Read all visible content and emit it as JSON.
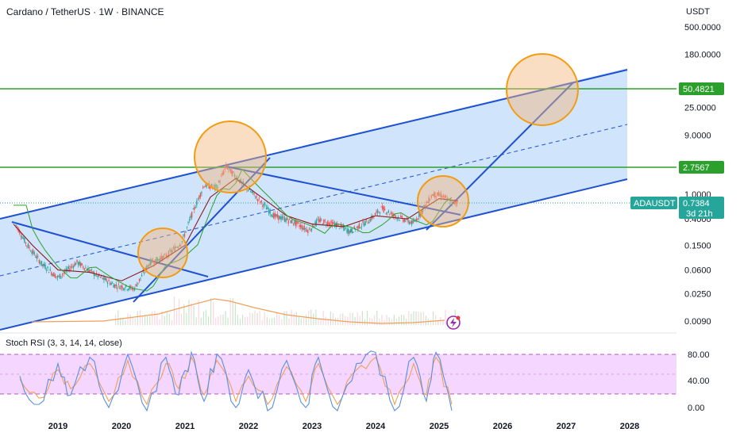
{
  "header": {
    "title": "Cardano / TetherUS · 1W · BINANCE",
    "currency": "USDT"
  },
  "price_axis": {
    "ticks": [
      "500.0000",
      "180.0000",
      "50.4821",
      "25.0000",
      "9.0000",
      "2.7567",
      "1.0000",
      "0.7384",
      "0.4000",
      "0.1500",
      "0.0600",
      "0.0250",
      "0.0090"
    ]
  },
  "labels": {
    "level_high": "50.4821",
    "level_mid": "2.7567",
    "symbol": "ADAUSDT",
    "last_price": "0.7384",
    "countdown": "3d 21h"
  },
  "rsi": {
    "title": "Stoch RSI (3, 3, 14, 14, close)",
    "ticks": [
      "80.00",
      "40.00",
      "0.00"
    ],
    "band": [
      20,
      80
    ],
    "mid": 50
  },
  "time_axis": {
    "years": [
      "2019",
      "2020",
      "2021",
      "2022",
      "2023",
      "2024",
      "2025",
      "2026",
      "2027",
      "2028"
    ]
  },
  "colors": {
    "up": "#26a69a",
    "down": "#ef5350",
    "channel": "#1e50d2",
    "channel_fill": "#bcd8fa",
    "level": "#2ca02c",
    "circle": "#f39c12",
    "ema": "#8b1a1a",
    "rsi_k": "#5b8fdc",
    "rsi_d": "#f0a05a",
    "rsi_band": "#f0c8ff"
  },
  "chart_data": {
    "type": "line",
    "title": "Cardano / TetherUS · 1W · BINANCE",
    "yscale": "log",
    "ylim": [
      0.0065,
      700
    ],
    "xlim": [
      2018.2,
      2028.5
    ],
    "series": [
      {
        "values": [
          [
            2018.3,
            0.38
          ],
          [
            2018.5,
            0.16
          ],
          [
            2018.75,
            0.075
          ],
          [
            2019.0,
            0.045
          ],
          [
            2019.3,
            0.08
          ],
          [
            2019.6,
            0.05
          ],
          [
            2019.9,
            0.034
          ],
          [
            2020.2,
            0.03
          ],
          [
            2020.45,
            0.08
          ],
          [
            2020.7,
            0.1
          ],
          [
            2020.95,
            0.17
          ],
          [
            2021.1,
            0.45
          ],
          [
            2021.3,
            1.4
          ],
          [
            2021.5,
            1.3
          ],
          [
            2021.65,
            2.8
          ],
          [
            2021.9,
            1.5
          ],
          [
            2022.1,
            0.95
          ],
          [
            2022.4,
            0.45
          ],
          [
            2022.7,
            0.36
          ],
          [
            2022.95,
            0.26
          ],
          [
            2023.1,
            0.38
          ],
          [
            2023.4,
            0.32
          ],
          [
            2023.6,
            0.25
          ],
          [
            2023.9,
            0.38
          ],
          [
            2024.1,
            0.6
          ],
          [
            2024.3,
            0.45
          ],
          [
            2024.6,
            0.34
          ],
          [
            2024.9,
            1.0
          ],
          [
            2025.05,
            0.95
          ],
          [
            2025.2,
            0.72
          ],
          [
            2025.3,
            0.7384
          ]
        ]
      },
      {
        "values": [
          [
            2018.3,
            0.33
          ],
          [
            2018.6,
            0.15
          ],
          [
            2019.0,
            0.06
          ],
          [
            2019.5,
            0.055
          ],
          [
            2020.0,
            0.04
          ],
          [
            2020.5,
            0.07
          ],
          [
            2021.0,
            0.15
          ],
          [
            2021.4,
            0.9
          ],
          [
            2021.8,
            1.8
          ],
          [
            2022.2,
            0.9
          ],
          [
            2022.6,
            0.45
          ],
          [
            2023.0,
            0.33
          ],
          [
            2023.5,
            0.3
          ],
          [
            2024.0,
            0.45
          ],
          [
            2024.5,
            0.4
          ],
          [
            2025.0,
            0.85
          ],
          [
            2025.3,
            0.78
          ]
        ]
      }
    ],
    "levels": [
      50.4821,
      2.7567
    ],
    "stoch_rsi": {
      "ylim": [
        0,
        100
      ],
      "band": [
        20,
        80
      ],
      "k": [
        [
          2018.4,
          60
        ],
        [
          2018.7,
          15
        ],
        [
          2019.0,
          80
        ],
        [
          2019.2,
          30
        ],
        [
          2019.5,
          90
        ],
        [
          2019.8,
          10
        ],
        [
          2020.1,
          95
        ],
        [
          2020.4,
          5
        ],
        [
          2020.7,
          90
        ],
        [
          2020.9,
          30
        ],
        [
          2021.1,
          98
        ],
        [
          2021.3,
          20
        ],
        [
          2021.5,
          95
        ],
        [
          2021.8,
          10
        ],
        [
          2022.0,
          70
        ],
        [
          2022.3,
          5
        ],
        [
          2022.6,
          85
        ],
        [
          2022.9,
          10
        ],
        [
          2023.1,
          90
        ],
        [
          2023.4,
          5
        ],
        [
          2023.7,
          80
        ],
        [
          2024.0,
          98
        ],
        [
          2024.3,
          5
        ],
        [
          2024.6,
          90
        ],
        [
          2024.8,
          20
        ],
        [
          2024.95,
          98
        ],
        [
          2025.2,
          5
        ]
      ],
      "d": [
        [
          2018.4,
          55
        ],
        [
          2018.7,
          25
        ],
        [
          2019.0,
          70
        ],
        [
          2019.2,
          40
        ],
        [
          2019.5,
          80
        ],
        [
          2019.8,
          20
        ],
        [
          2020.1,
          85
        ],
        [
          2020.4,
          15
        ],
        [
          2020.7,
          80
        ],
        [
          2020.9,
          40
        ],
        [
          2021.1,
          90
        ],
        [
          2021.3,
          30
        ],
        [
          2021.5,
          85
        ],
        [
          2021.8,
          20
        ],
        [
          2022.0,
          60
        ],
        [
          2022.3,
          15
        ],
        [
          2022.6,
          75
        ],
        [
          2022.9,
          20
        ],
        [
          2023.1,
          80
        ],
        [
          2023.4,
          15
        ],
        [
          2023.7,
          70
        ],
        [
          2024.0,
          90
        ],
        [
          2024.3,
          15
        ],
        [
          2024.6,
          80
        ],
        [
          2024.8,
          30
        ],
        [
          2024.95,
          90
        ],
        [
          2025.2,
          15
        ]
      ]
    }
  }
}
